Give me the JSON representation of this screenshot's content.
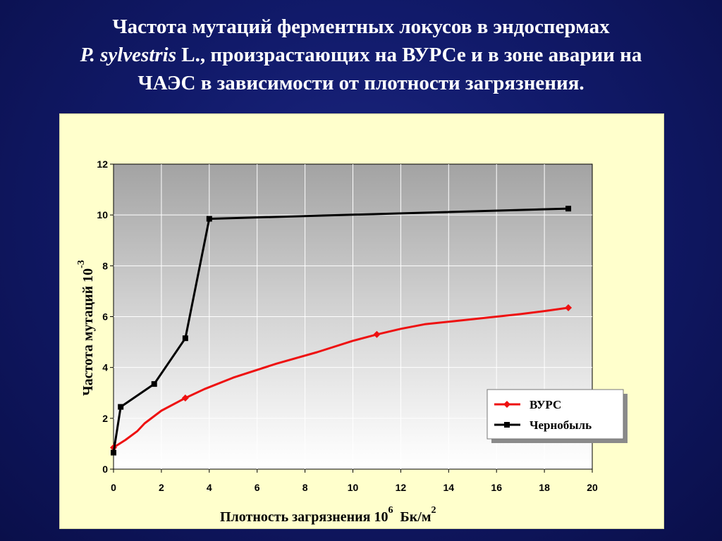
{
  "slide": {
    "title_line1": "Частота мутаций ферментных локусов в эндоспермах",
    "title_line2_latin": "P. sylvestris",
    "title_line2_rest": " L., произрастающих на ВУРСе и в зоне аварии на",
    "title_line3": "ЧАЭС в зависимости от плотности загрязнения."
  },
  "chart_data": {
    "type": "line",
    "xlabel": "Плотность загрязнения 10",
    "xlabel_exp": "6",
    "xlabel_unit": "Бк/м",
    "xlabel_unit_exp": "2",
    "ylabel": "Частота мутаций 10",
    "ylabel_exp": "-3",
    "xlim": [
      0,
      20
    ],
    "ylim": [
      0,
      12
    ],
    "x_ticks": [
      "0",
      "2",
      "4",
      "6",
      "8",
      "10",
      "12",
      "14",
      "16",
      "18",
      "20"
    ],
    "y_ticks": [
      "0",
      "2",
      "4",
      "6",
      "8",
      "10",
      "12"
    ],
    "grid": true,
    "legend_position": "bottom-right",
    "series": [
      {
        "name": "ВУРС",
        "color": "#ee1111",
        "marker": "diamond",
        "points": [
          [
            0,
            0.85
          ],
          [
            3,
            2.8
          ],
          [
            11,
            5.3
          ],
          [
            19,
            6.35
          ]
        ],
        "curve": [
          [
            0,
            0.85
          ],
          [
            0.5,
            1.15
          ],
          [
            1,
            1.5
          ],
          [
            1.3,
            1.8
          ],
          [
            2,
            2.3
          ],
          [
            3,
            2.8
          ],
          [
            3.8,
            3.15
          ],
          [
            5,
            3.6
          ],
          [
            6.8,
            4.15
          ],
          [
            8.5,
            4.6
          ],
          [
            10,
            5.05
          ],
          [
            11,
            5.3
          ],
          [
            12,
            5.52
          ],
          [
            13,
            5.7
          ],
          [
            14,
            5.8
          ],
          [
            15,
            5.9
          ],
          [
            16,
            6.0
          ],
          [
            17,
            6.1
          ],
          [
            18,
            6.22
          ],
          [
            19,
            6.35
          ]
        ]
      },
      {
        "name": "Чернобыль",
        "color": "#000000",
        "marker": "square",
        "points": [
          [
            0,
            0.65
          ],
          [
            0.3,
            2.45
          ],
          [
            1.7,
            3.35
          ],
          [
            3,
            5.15
          ],
          [
            4,
            9.85
          ],
          [
            19,
            10.25
          ]
        ],
        "curve": [
          [
            0,
            0.65
          ],
          [
            0.3,
            2.45
          ],
          [
            1.7,
            3.35
          ],
          [
            3,
            5.15
          ],
          [
            4,
            9.85
          ],
          [
            19,
            10.25
          ]
        ]
      }
    ]
  }
}
